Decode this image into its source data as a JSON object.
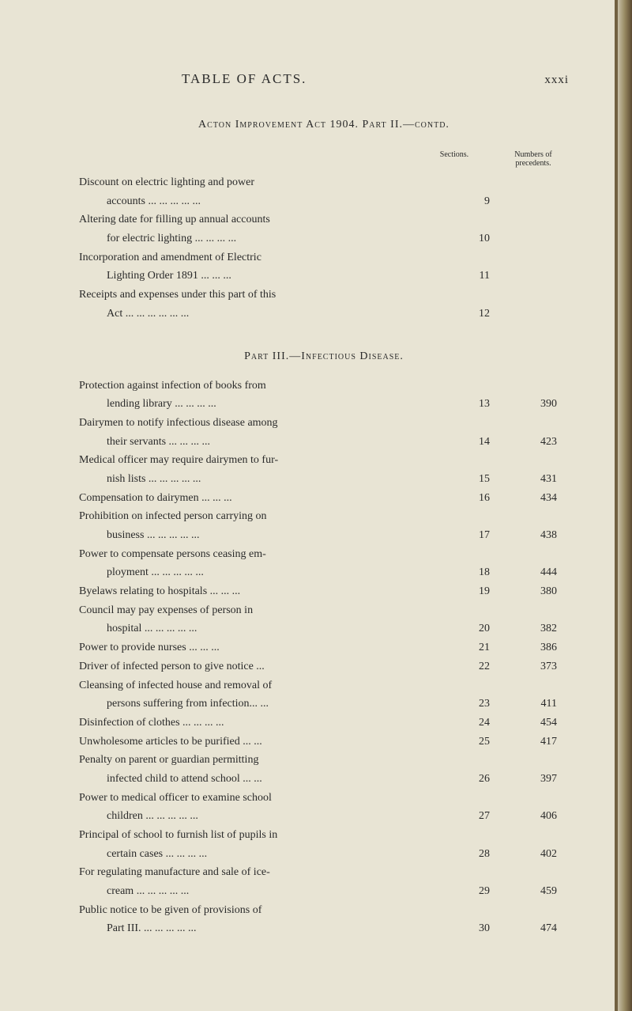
{
  "header": {
    "title": "TABLE OF ACTS.",
    "page_number": "xxxi"
  },
  "act_heading": "Acton Improvement Act 1904.  Part II.—contd.",
  "col_headers": {
    "sections": "Sections.",
    "numbers": "Numbers of precedents."
  },
  "part2_entries": [
    {
      "lines": [
        "Discount on electric lighting and power",
        "accounts       ...   ...   ...   ...   ..."
      ],
      "section": "9",
      "precedent": ""
    },
    {
      "lines": [
        "Altering date for filling up annual accounts",
        "for electric lighting ...     ...   ...   ..."
      ],
      "section": "10",
      "precedent": ""
    },
    {
      "lines": [
        "Incorporation and amendment of Electric",
        "Lighting Order 1891           ...   ...   ..."
      ],
      "section": "11",
      "precedent": ""
    },
    {
      "lines": [
        "Receipts and expenses under this part of this",
        "Act   ...     ...     ...     ...     ...   ..."
      ],
      "section": "12",
      "precedent": ""
    }
  ],
  "part3_heading": "Part III.—Infectious Disease.",
  "part3_entries": [
    {
      "lines": [
        "Protection against infection of books from",
        "lending library      ...    ...    ...    ..."
      ],
      "section": "13",
      "precedent": "390"
    },
    {
      "lines": [
        "Dairymen to notify infectious disease among",
        "their servants          ...    ...    ...    ..."
      ],
      "section": "14",
      "precedent": "423"
    },
    {
      "lines": [
        "Medical officer may require dairymen to fur-",
        "nish lists     ...    ...    ...    ...    ..."
      ],
      "section": "15",
      "precedent": "431"
    },
    {
      "lines": [
        "Compensation to dairymen    ...    ...    ..."
      ],
      "section": "16",
      "precedent": "434"
    },
    {
      "lines": [
        "Prohibition on infected person carrying on",
        "business        ...   ...   ...   ...    ..."
      ],
      "section": "17",
      "precedent": "438"
    },
    {
      "lines": [
        "Power to compensate persons ceasing em-",
        "ployment     ...    ...    ...    ...    ..."
      ],
      "section": "18",
      "precedent": "444"
    },
    {
      "lines": [
        "Byelaws relating to hospitals ...    ...    ..."
      ],
      "section": "19",
      "precedent": "380"
    },
    {
      "lines": [
        "Council may pay expenses of person in",
        "hospital       ...    ...    ...    ...    ..."
      ],
      "section": "20",
      "precedent": "382"
    },
    {
      "lines": [
        "Power to provide nurses        ...    ...    ..."
      ],
      "section": "21",
      "precedent": "386"
    },
    {
      "lines": [
        "Driver of infected person to give notice   ..."
      ],
      "section": "22",
      "precedent": "373"
    },
    {
      "lines": [
        "Cleansing of infected house and removal of",
        "persons suffering from infection...    ..."
      ],
      "section": "23",
      "precedent": "411"
    },
    {
      "lines": [
        "Disinfection of clothes ...    ...   ...    ..."
      ],
      "section": "24",
      "precedent": "454"
    },
    {
      "lines": [
        "Unwholesome articles to be purified ...   ..."
      ],
      "section": "25",
      "precedent": "417"
    },
    {
      "lines": [
        "Penalty on parent or guardian permitting",
        "infected child to attend school  ...   ..."
      ],
      "section": "26",
      "precedent": "397"
    },
    {
      "lines": [
        "Power to medical officer to examine school",
        "children      ...    ...    ...    ...   ..."
      ],
      "section": "27",
      "precedent": "406"
    },
    {
      "lines": [
        "Principal of school to furnish list of pupils in",
        "certain cases         ...    ...   ...   ..."
      ],
      "section": "28",
      "precedent": "402"
    },
    {
      "lines": [
        "For regulating manufacture and sale of ice-",
        "cream           ...    ...   ...   ...   ..."
      ],
      "section": "29",
      "precedent": "459"
    },
    {
      "lines": [
        "Public notice to be given of provisions of",
        "Part III.     ...    ...   ...   ...   ..."
      ],
      "section": "30",
      "precedent": "474"
    }
  ]
}
